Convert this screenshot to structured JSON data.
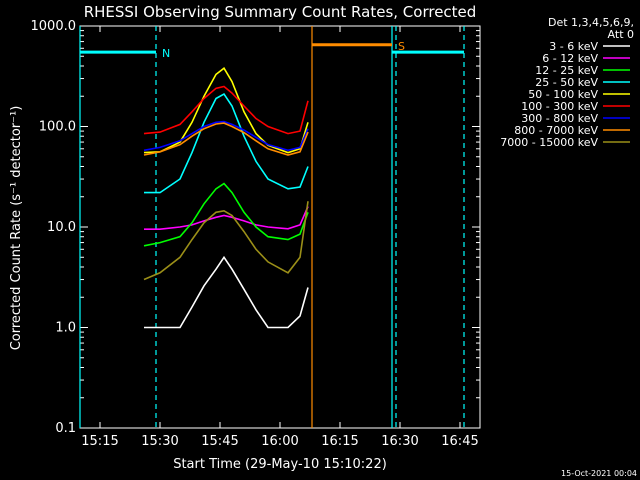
{
  "chart_data": {
    "type": "line",
    "title": "RHESSI Observing Summary Count Rates, Corrected",
    "xlabel": "Start Time (29-May-10 15:10:22)",
    "ylabel": "Corrected Count Rate (s⁻¹ detector⁻¹)",
    "y_scale": "log",
    "ylim": [
      0.1,
      1000.0
    ],
    "xlim": [
      "15:10",
      "16:50"
    ],
    "xticks": [
      "15:15",
      "15:30",
      "15:45",
      "16:00",
      "16:15",
      "16:30",
      "16:45"
    ],
    "yticks": [
      "0.1",
      "1.0",
      "10.0",
      "100.0",
      "1000.0"
    ],
    "legend_header": [
      "Det 1,3,4,5,6,9,",
      "Att 0"
    ],
    "legend_position": "right",
    "timestamp": "15-Oct-2021 00:04",
    "series": [
      {
        "name": "3 - 6 keV",
        "color": "#ffffff",
        "points": [
          [
            "15:26",
            1.0
          ],
          [
            "15:30",
            1.0
          ],
          [
            "15:35",
            1.0
          ],
          [
            "15:38",
            1.6
          ],
          [
            "15:41",
            2.6
          ],
          [
            "15:44",
            3.8
          ],
          [
            "15:46",
            5.0
          ],
          [
            "15:48",
            3.8
          ],
          [
            "15:51",
            2.4
          ],
          [
            "15:54",
            1.5
          ],
          [
            "15:57",
            1.0
          ],
          [
            "16:02",
            1.0
          ],
          [
            "16:05",
            1.3
          ],
          [
            "16:07",
            2.5
          ]
        ]
      },
      {
        "name": "6 - 12 keV",
        "color": "#ff00ff",
        "points": [
          [
            "15:26",
            9.5
          ],
          [
            "15:30",
            9.5
          ],
          [
            "15:35",
            10.0
          ],
          [
            "15:38",
            10.5
          ],
          [
            "15:41",
            11.5
          ],
          [
            "15:44",
            12.5
          ],
          [
            "15:46",
            13.0
          ],
          [
            "15:48",
            12.5
          ],
          [
            "15:51",
            11.5
          ],
          [
            "15:54",
            10.5
          ],
          [
            "15:57",
            10.0
          ],
          [
            "16:02",
            9.6
          ],
          [
            "16:05",
            10.5
          ],
          [
            "16:07",
            16.0
          ]
        ]
      },
      {
        "name": "12 - 25 keV",
        "color": "#00ff00",
        "points": [
          [
            "15:26",
            6.5
          ],
          [
            "15:30",
            7.0
          ],
          [
            "15:35",
            8.0
          ],
          [
            "15:38",
            11.0
          ],
          [
            "15:41",
            17.0
          ],
          [
            "15:44",
            24.0
          ],
          [
            "15:46",
            27.0
          ],
          [
            "15:48",
            22.0
          ],
          [
            "15:51",
            14.0
          ],
          [
            "15:54",
            10.0
          ],
          [
            "15:57",
            8.0
          ],
          [
            "16:02",
            7.5
          ],
          [
            "16:05",
            8.5
          ],
          [
            "16:07",
            14.0
          ]
        ]
      },
      {
        "name": "25 - 50 keV",
        "color": "#00ffff",
        "points": [
          [
            "15:26",
            22.0
          ],
          [
            "15:30",
            22.0
          ],
          [
            "15:35",
            30.0
          ],
          [
            "15:38",
            55.0
          ],
          [
            "15:41",
            110.0
          ],
          [
            "15:44",
            190.0
          ],
          [
            "15:46",
            210.0
          ],
          [
            "15:48",
            160.0
          ],
          [
            "15:51",
            80.0
          ],
          [
            "15:54",
            45.0
          ],
          [
            "15:57",
            30.0
          ],
          [
            "16:02",
            24.0
          ],
          [
            "16:05",
            25.0
          ],
          [
            "16:07",
            40.0
          ]
        ]
      },
      {
        "name": "50 - 100 keV",
        "color": "#ffff00",
        "points": [
          [
            "15:26",
            55.0
          ],
          [
            "15:30",
            56.0
          ],
          [
            "15:35",
            70.0
          ],
          [
            "15:38",
            110.0
          ],
          [
            "15:41",
            200.0
          ],
          [
            "15:44",
            330.0
          ],
          [
            "15:46",
            380.0
          ],
          [
            "15:48",
            280.0
          ],
          [
            "15:51",
            140.0
          ],
          [
            "15:54",
            85.0
          ],
          [
            "15:57",
            65.0
          ],
          [
            "16:02",
            55.0
          ],
          [
            "16:05",
            60.0
          ],
          [
            "16:07",
            110.0
          ]
        ]
      },
      {
        "name": "100 - 300 keV",
        "color": "#ff0000",
        "points": [
          [
            "15:26",
            85.0
          ],
          [
            "15:30",
            88.0
          ],
          [
            "15:35",
            105.0
          ],
          [
            "15:38",
            140.0
          ],
          [
            "15:41",
            190.0
          ],
          [
            "15:44",
            240.0
          ],
          [
            "15:46",
            250.0
          ],
          [
            "15:48",
            215.0
          ],
          [
            "15:51",
            160.0
          ],
          [
            "15:54",
            120.0
          ],
          [
            "15:57",
            100.0
          ],
          [
            "16:02",
            85.0
          ],
          [
            "16:05",
            90.0
          ],
          [
            "16:07",
            180.0
          ]
        ]
      },
      {
        "name": "300 - 800 keV",
        "color": "#0000ff",
        "points": [
          [
            "15:26",
            58.0
          ],
          [
            "15:30",
            62.0
          ],
          [
            "15:35",
            72.0
          ],
          [
            "15:38",
            85.0
          ],
          [
            "15:41",
            100.0
          ],
          [
            "15:44",
            110.0
          ],
          [
            "15:46",
            112.0
          ],
          [
            "15:48",
            105.0
          ],
          [
            "15:51",
            92.0
          ],
          [
            "15:54",
            78.0
          ],
          [
            "15:57",
            66.0
          ],
          [
            "16:02",
            58.0
          ],
          [
            "16:05",
            62.0
          ],
          [
            "16:07",
            95.0
          ]
        ]
      },
      {
        "name": "800 - 7000 keV",
        "color": "#ff8c00",
        "points": [
          [
            "15:26",
            52.0
          ],
          [
            "15:30",
            56.0
          ],
          [
            "15:35",
            66.0
          ],
          [
            "15:38",
            80.0
          ],
          [
            "15:41",
            95.0
          ],
          [
            "15:44",
            106.0
          ],
          [
            "15:46",
            108.0
          ],
          [
            "15:48",
            100.0
          ],
          [
            "15:51",
            87.0
          ],
          [
            "15:54",
            72.0
          ],
          [
            "15:57",
            60.0
          ],
          [
            "16:02",
            52.0
          ],
          [
            "16:05",
            56.0
          ],
          [
            "16:07",
            88.0
          ]
        ]
      },
      {
        "name": "7000 - 15000 keV",
        "color": "#9b8f18",
        "points": [
          [
            "15:26",
            3.0
          ],
          [
            "15:30",
            3.5
          ],
          [
            "15:35",
            5.0
          ],
          [
            "15:38",
            7.5
          ],
          [
            "15:41",
            11.0
          ],
          [
            "15:44",
            14.0
          ],
          [
            "15:46",
            14.5
          ],
          [
            "15:48",
            13.0
          ],
          [
            "15:51",
            9.0
          ],
          [
            "15:54",
            6.0
          ],
          [
            "15:57",
            4.5
          ],
          [
            "16:02",
            3.5
          ],
          [
            "16:05",
            5.0
          ],
          [
            "16:07",
            18.0
          ]
        ]
      }
    ],
    "markers": [
      {
        "label": "N",
        "color": "#00ffff",
        "span": [
          "15:10",
          "15:29"
        ],
        "level": 550.0
      },
      {
        "label": "S",
        "color": "#ff8c00",
        "span": [
          "16:08",
          "16:28"
        ],
        "level": 650.0
      },
      {
        "label": "",
        "color": "#00ffff",
        "span": [
          "16:28",
          "16:46"
        ],
        "level": 550.0
      }
    ],
    "vertical_lines": [
      {
        "time": "15:10",
        "color": "#00ffff",
        "style": "solid"
      },
      {
        "time": "15:29",
        "color": "#00ffff",
        "style": "dashed"
      },
      {
        "time": "16:08",
        "color": "#ff8c00",
        "style": "solid"
      },
      {
        "time": "16:28",
        "color": "#00ffff",
        "style": "solid"
      },
      {
        "time": "16:29",
        "color": "#00ffff",
        "style": "dashed"
      },
      {
        "time": "16:46",
        "color": "#00ffff",
        "style": "dashed"
      }
    ]
  }
}
